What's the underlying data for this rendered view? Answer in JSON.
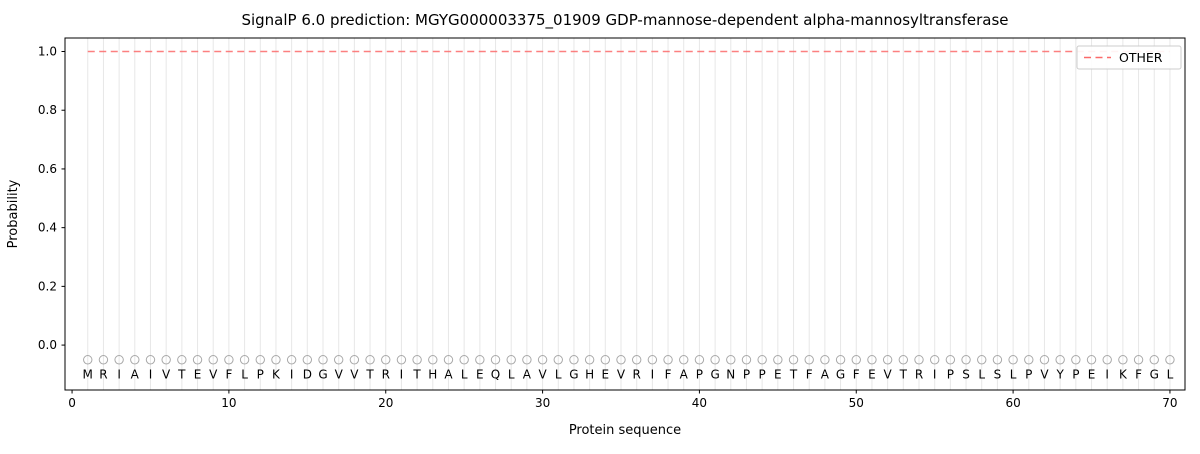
{
  "chart_data": {
    "type": "line",
    "title": "SignalP 6.0 prediction: MGYG000003375_01909 GDP-mannose-dependent alpha-mannosyltransferase",
    "xlabel": "Protein sequence",
    "ylabel": "Probability",
    "xlim": [
      -0.45,
      70.96
    ],
    "ylim": [
      -0.153,
      1.046
    ],
    "x_ticks": [
      0,
      10,
      20,
      30,
      40,
      50,
      60,
      70
    ],
    "x_tick_labels": [
      "0",
      "10",
      "20",
      "30",
      "40",
      "50",
      "60",
      "70"
    ],
    "y_ticks": [
      0.0,
      0.2,
      0.4,
      0.6,
      0.8,
      1.0
    ],
    "y_tick_labels": [
      "0.0",
      "0.2",
      "0.4",
      "0.6",
      "0.8",
      "1.0"
    ],
    "grid": "vertical-line-per-residue",
    "legend": {
      "position": "upper-right",
      "entries": [
        {
          "label": "OTHER",
          "color": "#fb6a6a",
          "style": "dashed"
        }
      ]
    },
    "series": [
      {
        "name": "OTHER",
        "style": "dashed",
        "color": "#fb6a6a",
        "x_range": [
          1,
          70
        ],
        "constant_value": 1.0
      }
    ],
    "sequence": [
      "M",
      "R",
      "I",
      "A",
      "I",
      "V",
      "T",
      "E",
      "V",
      "F",
      "L",
      "P",
      "K",
      "I",
      "D",
      "G",
      "V",
      "V",
      "T",
      "R",
      "I",
      "T",
      "H",
      "A",
      "L",
      "E",
      "Q",
      "L",
      "A",
      "V",
      "L",
      "G",
      "H",
      "E",
      "V",
      "R",
      "I",
      "F",
      "A",
      "P",
      "G",
      "N",
      "P",
      "P",
      "E",
      "T",
      "F",
      "A",
      "G",
      "F",
      "E",
      "V",
      "T",
      "R",
      "I",
      "P",
      "S",
      "L",
      "S",
      "L",
      "P",
      "V",
      "Y",
      "P",
      "E",
      "I",
      "K",
      "F",
      "G",
      "L"
    ],
    "marker_row": {
      "shape": "open-circle",
      "y": -0.05,
      "letter_y": -0.1
    },
    "colors": {
      "grid": "#e7e7e7",
      "marker": "#a8a8a8",
      "letter": "#1a1a1a",
      "spine": "#000000",
      "legend_border": "#cccccc",
      "background": "#ffffff"
    }
  }
}
